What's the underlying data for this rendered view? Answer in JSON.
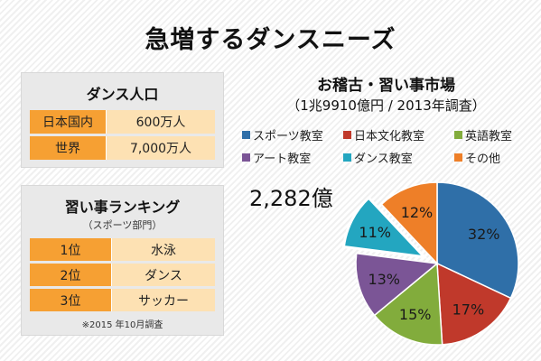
{
  "title": "急増するダンスニーズ",
  "population": {
    "title": "ダンス人口",
    "rows": [
      {
        "label": "日本国内",
        "value": "600万人"
      },
      {
        "label": "世界",
        "value": "7,000万人"
      }
    ]
  },
  "ranking": {
    "title": "習い事ランキング",
    "subtitle": "（スポーツ部門）",
    "rows": [
      {
        "rank": "1位",
        "name": "水泳"
      },
      {
        "rank": "2位",
        "name": "ダンス"
      },
      {
        "rank": "3位",
        "name": "サッカー"
      }
    ],
    "note": "※2015 年10月調査"
  },
  "chart_data": {
    "type": "pie",
    "title": "お稽古・習い事市場",
    "subtitle": "（1兆9910億円 / 2013年調査）",
    "callout": "2,282億",
    "exploded": "ダンス教室",
    "slices": [
      {
        "name": "スポーツ教室",
        "value": 32,
        "label": "32%",
        "color": "#2f6fa8"
      },
      {
        "name": "日本文化教室",
        "value": 17,
        "label": "17%",
        "color": "#c0392b"
      },
      {
        "name": "英語教室",
        "value": 15,
        "label": "15%",
        "color": "#82ac3c"
      },
      {
        "name": "アート教室",
        "value": 13,
        "label": "13%",
        "color": "#7b5596"
      },
      {
        "name": "ダンス教室",
        "value": 11,
        "label": "11%",
        "color": "#23a6c0"
      },
      {
        "name": "その他",
        "value": 12,
        "label": "12%",
        "color": "#ee7f28"
      }
    ]
  }
}
